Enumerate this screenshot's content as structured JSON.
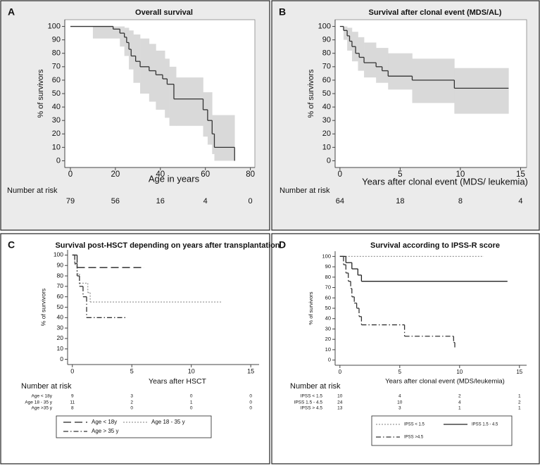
{
  "chart_data": [
    {
      "type": "line",
      "panel": "A",
      "title": "Overall survival",
      "xlabel": "Age in years",
      "ylabel": "% of survivors",
      "xlim": [
        -2.5,
        82
      ],
      "ylim": [
        -5,
        105
      ],
      "xticks": [
        0,
        20,
        40,
        60,
        80
      ],
      "yticks": [
        0,
        10,
        20,
        30,
        40,
        50,
        60,
        70,
        80,
        90,
        100
      ],
      "series": [
        {
          "color": "#333333",
          "line_style": "solid",
          "x": [
            0,
            19,
            22,
            24,
            25,
            26,
            27,
            29,
            31,
            35,
            38,
            41,
            43,
            46,
            59,
            61,
            63,
            64,
            73
          ],
          "values": [
            100,
            98,
            95,
            92,
            88,
            83,
            78,
            74,
            70,
            67,
            64,
            61,
            57,
            46,
            38,
            30,
            20,
            10,
            0
          ]
        }
      ],
      "ci": {
        "color": "#d9d9d9",
        "x": [
          10,
          19,
          22,
          24,
          26,
          28,
          31,
          35,
          38,
          42,
          44,
          47,
          59,
          61,
          63,
          64,
          73
        ],
        "upper": [
          100,
          100,
          100,
          99,
          97,
          94,
          91,
          87,
          82,
          76,
          70,
          62,
          51,
          51,
          34,
          34,
          34
        ],
        "lower": [
          91,
          91,
          85,
          78,
          68,
          58,
          50,
          44,
          38,
          32,
          26,
          26,
          18,
          12,
          5,
          0,
          0
        ]
      },
      "risk_table": {
        "title": "Number at risk",
        "rows": [
          {
            "values": [
              79,
              56,
              16,
              4,
              0
            ]
          }
        ]
      }
    },
    {
      "type": "line",
      "panel": "B",
      "title": "Survival after clonal event (MDS/AL)",
      "xlabel": "Years after clonal event (MDS/ leukemia)",
      "ylabel": "% of survivors",
      "xlim": [
        -0.4,
        15.5
      ],
      "ylim": [
        -5,
        105
      ],
      "xticks": [
        0,
        5,
        10,
        15
      ],
      "yticks": [
        0,
        10,
        20,
        30,
        40,
        50,
        60,
        70,
        80,
        90,
        100
      ],
      "series": [
        {
          "color": "#333333",
          "line_style": "solid",
          "x": [
            0,
            0.3,
            0.6,
            0.8,
            1,
            1.3,
            1.6,
            2,
            3,
            3.5,
            4,
            6,
            9.5,
            14
          ],
          "values": [
            100,
            97,
            93,
            89,
            85,
            80,
            77,
            73,
            70,
            67,
            63,
            60,
            54,
            54
          ]
        }
      ],
      "ci": {
        "color": "#d9d9d9",
        "x": [
          0,
          0.3,
          0.6,
          1,
          1.5,
          2,
          3,
          4,
          6,
          9.5,
          14
        ],
        "upper": [
          100,
          100,
          99,
          96,
          92,
          88,
          84,
          80,
          76,
          69,
          69
        ],
        "lower": [
          100,
          90,
          82,
          74,
          67,
          62,
          58,
          53,
          43,
          35,
          35
        ]
      },
      "risk_table": {
        "title": "Number at risk",
        "rows": [
          {
            "values": [
              64,
              18,
              8,
              4
            ]
          }
        ]
      }
    },
    {
      "type": "line",
      "panel": "C",
      "title": "Survival post-HSCT depending on years after transplantation",
      "xlabel": "Years after HSCT",
      "ylabel": "% of survivors",
      "xlim": [
        -0.4,
        15.7
      ],
      "ylim": [
        -5,
        105
      ],
      "xticks": [
        0,
        5,
        10,
        15
      ],
      "yticks": [
        0,
        10,
        20,
        30,
        40,
        50,
        60,
        70,
        80,
        90,
        100
      ],
      "legend": "bottom",
      "series": [
        {
          "name": "Age < 18y",
          "color": "#222222",
          "line_style": "dashed",
          "x": [
            0,
            0.4,
            6
          ],
          "values": [
            100,
            88,
            88
          ]
        },
        {
          "name": "Age 18 - 35 y",
          "color": "#9a9a9a",
          "line_style": "dotted",
          "x": [
            0,
            0.2,
            0.4,
            0.6,
            1.3,
            1.5,
            12.5
          ],
          "values": [
            100,
            91,
            82,
            73,
            64,
            55,
            55
          ]
        },
        {
          "name": "Age > 35 y",
          "color": "#333333",
          "line_style": "dashdot",
          "x": [
            0,
            0.2,
            0.4,
            0.6,
            0.9,
            1.2,
            4.6
          ],
          "values": [
            100,
            92,
            80,
            70,
            60,
            40,
            40
          ]
        }
      ],
      "risk_table": {
        "title": "Number at risk",
        "rows": [
          {
            "label": "Age < 18y",
            "values": [
              9,
              3,
              0,
              0
            ]
          },
          {
            "label": "Age  18 - 35 y",
            "values": [
              11,
              2,
              1,
              0
            ]
          },
          {
            "label": "Age >35 y",
            "values": [
              8,
              0,
              0,
              0
            ]
          }
        ]
      }
    },
    {
      "type": "line",
      "panel": "D",
      "title": "Survival according to IPSS-R score",
      "xlabel": "Years after clonal event (MDS/leukemia)",
      "ylabel": "% of survivors",
      "xlim": [
        -0.4,
        15.6
      ],
      "ylim": [
        -5,
        105
      ],
      "xticks": [
        0,
        5,
        10,
        15
      ],
      "yticks": [
        0,
        10,
        20,
        30,
        40,
        50,
        60,
        70,
        80,
        90,
        100
      ],
      "legend": "bottom",
      "series": [
        {
          "name": "IPSS < 1.5",
          "color": "#9a9a9a",
          "line_style": "dotted",
          "x": [
            0,
            12
          ],
          "values": [
            100,
            100
          ]
        },
        {
          "name": "IPSS 1.5 - 4.5",
          "color": "#222222",
          "line_style": "solid",
          "x": [
            0,
            0.5,
            1,
            1.5,
            1.8,
            14
          ],
          "values": [
            100,
            94,
            88,
            82,
            76,
            76
          ]
        },
        {
          "name": "IPSS >4.5",
          "color": "#333333",
          "line_style": "dashdot",
          "x": [
            0,
            0.3,
            0.5,
            0.7,
            0.9,
            1,
            1.2,
            1.4,
            1.6,
            1.8,
            5.4,
            9.5,
            9.6
          ],
          "values": [
            100,
            92,
            84,
            76,
            69,
            61,
            55,
            50,
            42,
            34,
            23,
            17,
            12
          ]
        }
      ],
      "risk_table": {
        "title": "Number at risk",
        "rows": [
          {
            "label": "IPSS < 1.5",
            "values": [
              10,
              4,
              2,
              1
            ]
          },
          {
            "label": "IPSS 1.5 - 4.5",
            "values": [
              24,
              10,
              4,
              2
            ]
          },
          {
            "label": "IPSS > 4.5",
            "values": [
              13,
              3,
              1,
              1
            ]
          }
        ]
      }
    }
  ]
}
